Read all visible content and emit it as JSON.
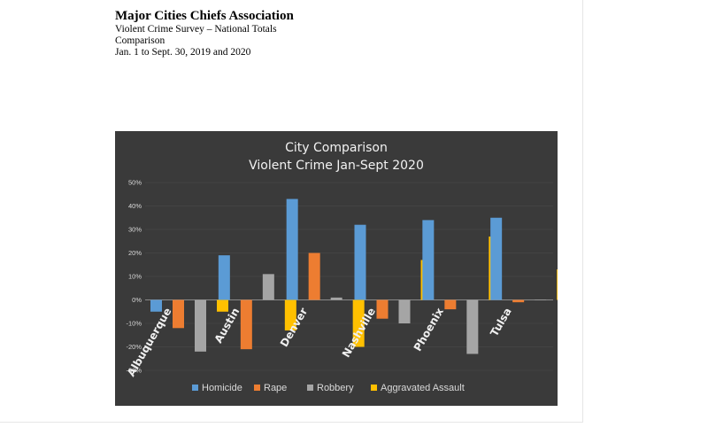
{
  "header": {
    "title": "Major Cities Chiefs Association",
    "subtitle_1": "Violent Crime Survey – National Totals",
    "subtitle_2": "Comparison",
    "subtitle_3": "Jan. 1 to Sept. 30, 2019 and 2020"
  },
  "chart_data": {
    "type": "bar",
    "title": "City Comparison",
    "subtitle": "Violent Crime Jan-Sept 2020",
    "categories": [
      "Albuquerque",
      "Austin",
      "Denver",
      "Nashville",
      "Phoenix",
      "Tulsa"
    ],
    "series": [
      {
        "name": "Homicide",
        "color": "#5b9bd5",
        "values": [
          -5,
          19,
          43,
          32,
          34,
          35
        ]
      },
      {
        "name": "Rape",
        "color": "#ed7d31",
        "values": [
          -12,
          -21,
          20,
          -8,
          -4,
          -1
        ]
      },
      {
        "name": "Robbery",
        "color": "#a5a5a5",
        "values": [
          -22,
          11,
          1,
          -10,
          -23,
          0
        ]
      },
      {
        "name": "Aggravated Assault",
        "color": "#ffc000",
        "values": [
          -5,
          -13,
          -20,
          17,
          27,
          13
        ]
      }
    ],
    "yaxis": {
      "min": -30,
      "max": 50,
      "step": 10,
      "tick_labels": [
        "-30%",
        "-20%",
        "-10%",
        "0%",
        "10%",
        "20%",
        "30%",
        "40%",
        "50%"
      ]
    },
    "gridlines": true,
    "legend_position": "bottom",
    "background_color": "#3a3a3a"
  }
}
